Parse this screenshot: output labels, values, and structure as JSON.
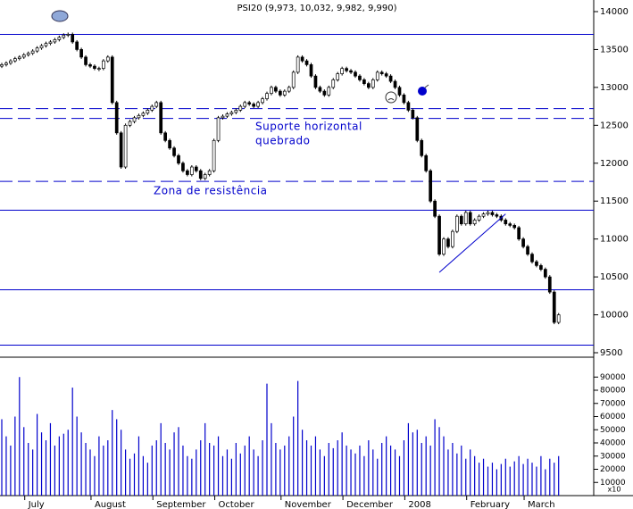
{
  "chart_data": {
    "type": "candlestick",
    "title": "PSI20 (9,973, 10,032, 9,982, 9,990)",
    "categories": [
      null,
      null,
      null,
      null,
      null,
      null,
      "July",
      null,
      null,
      null,
      null,
      null,
      null,
      null,
      null,
      null,
      null,
      null,
      null,
      null,
      null,
      "August",
      null,
      null,
      null,
      null,
      null,
      null,
      null,
      null,
      null,
      null,
      null,
      null,
      null,
      "September",
      null,
      null,
      null,
      null,
      null,
      null,
      null,
      null,
      null,
      null,
      null,
      null,
      null,
      "October",
      null,
      null,
      null,
      null,
      null,
      null,
      null,
      null,
      null,
      null,
      null,
      null,
      null,
      null,
      "November",
      null,
      null,
      null,
      null,
      null,
      null,
      null,
      null,
      null,
      null,
      null,
      null,
      null,
      "December",
      null,
      null,
      null,
      null,
      null,
      null,
      null,
      null,
      null,
      null,
      null,
      null,
      null,
      "2008",
      null,
      null,
      null,
      null,
      null,
      null,
      null,
      null,
      null,
      null,
      null,
      null,
      null,
      "February",
      null,
      null,
      null,
      null,
      null,
      null,
      null,
      null,
      null,
      null,
      null,
      null,
      "March",
      null,
      null,
      null,
      null,
      null,
      null,
      null
    ],
    "open": [
      13280,
      13300,
      13320,
      13350,
      13380,
      13400,
      13430,
      13450,
      13480,
      13520,
      13550,
      13580,
      13600,
      13630,
      13660,
      13690,
      13700,
      13600,
      13500,
      13400,
      13300,
      13280,
      13250,
      13250,
      13350,
      13400,
      12800,
      12400,
      11950,
      12500,
      12550,
      12600,
      12630,
      12660,
      12700,
      12750,
      12800,
      12400,
      12300,
      12200,
      12100,
      12000,
      11900,
      11850,
      11950,
      11900,
      11800,
      11850,
      11900,
      12300,
      12600,
      12620,
      12650,
      12670,
      12700,
      12750,
      12800,
      12780,
      12750,
      12800,
      12850,
      12920,
      13000,
      12950,
      12900,
      12950,
      13000,
      13200,
      13400,
      13350,
      13300,
      13150,
      13000,
      12950,
      12900,
      13000,
      13100,
      13180,
      13250,
      13220,
      13200,
      13150,
      13100,
      13050,
      13000,
      13100,
      13200,
      13180,
      13150,
      13080,
      13000,
      12900,
      12800,
      12700,
      12600,
      12300,
      12100,
      11900,
      11500,
      11300,
      10800,
      11000,
      10900,
      11100,
      11300,
      11200,
      11350,
      11200,
      11250,
      11300,
      11330,
      11350,
      11320,
      11300,
      11250,
      11200,
      11180,
      11150,
      11000,
      10900,
      10800,
      10700,
      10650,
      10600,
      10500,
      10300,
      9900
    ],
    "close": [
      13300,
      13320,
      13350,
      13380,
      13400,
      13430,
      13450,
      13480,
      13520,
      13550,
      13580,
      13600,
      13630,
      13660,
      13690,
      13700,
      13600,
      13500,
      13400,
      13300,
      13280,
      13250,
      13250,
      13350,
      13400,
      12800,
      12400,
      11950,
      12500,
      12550,
      12600,
      12630,
      12660,
      12700,
      12750,
      12800,
      12400,
      12300,
      12200,
      12100,
      12000,
      11900,
      11850,
      11950,
      11900,
      11800,
      11850,
      11900,
      12300,
      12600,
      12620,
      12650,
      12670,
      12700,
      12750,
      12800,
      12780,
      12750,
      12800,
      12850,
      12920,
      13000,
      12950,
      12900,
      12950,
      13000,
      13200,
      13400,
      13350,
      13300,
      13150,
      13000,
      12950,
      12900,
      13000,
      13100,
      13180,
      13250,
      13220,
      13200,
      13150,
      13100,
      13050,
      13000,
      13100,
      13200,
      13180,
      13150,
      13080,
      13000,
      12900,
      12800,
      12700,
      12600,
      12300,
      12100,
      11900,
      11500,
      11300,
      10800,
      11000,
      10900,
      11100,
      11300,
      11200,
      11350,
      11200,
      11250,
      11300,
      11330,
      11350,
      11320,
      11300,
      11250,
      11200,
      11180,
      11150,
      11000,
      10900,
      10800,
      10700,
      10650,
      10600,
      10500,
      10300,
      9900,
      10000
    ],
    "volume": [
      58000,
      45000,
      38000,
      60000,
      90000,
      52000,
      40000,
      35000,
      62000,
      48000,
      42000,
      55000,
      38000,
      45000,
      47000,
      50000,
      82000,
      60000,
      48000,
      40000,
      35000,
      30000,
      45000,
      38000,
      42000,
      65000,
      58000,
      50000,
      35000,
      28000,
      32000,
      45000,
      30000,
      25000,
      38000,
      42000,
      55000,
      40000,
      35000,
      48000,
      52000,
      38000,
      30000,
      28000,
      35000,
      42000,
      55000,
      40000,
      38000,
      45000,
      30000,
      35000,
      28000,
      40000,
      32000,
      38000,
      45000,
      35000,
      30000,
      42000,
      85000,
      55000,
      40000,
      35000,
      38000,
      45000,
      60000,
      87000,
      50000,
      42000,
      38000,
      45000,
      35000,
      30000,
      40000,
      36000,
      42000,
      48000,
      38000,
      35000,
      32000,
      38000,
      30000,
      42000,
      35000,
      28000,
      40000,
      45000,
      38000,
      35000,
      30000,
      42000,
      55000,
      48000,
      50000,
      40000,
      45000,
      38000,
      58000,
      52000,
      45000,
      35000,
      40000,
      32000,
      38000,
      28000,
      35000,
      30000,
      25000,
      28000,
      22000,
      25000,
      20000,
      24000,
      28000,
      22000,
      26000,
      30000,
      24000,
      28000,
      25000,
      22000,
      30000,
      20000,
      28000,
      25000,
      30000
    ],
    "ylim": [
      9441,
      14153
    ],
    "yticks": [
      9500,
      10000,
      10500,
      11000,
      11500,
      12000,
      12500,
      13000,
      13500,
      14000
    ],
    "vlim": [
      0,
      101700
    ],
    "vticks": [
      10000,
      20000,
      30000,
      40000,
      50000,
      60000,
      70000,
      80000,
      90000
    ],
    "volume_unit": "x10",
    "hlines": [
      {
        "value": 13700,
        "dash": false
      },
      {
        "value": 11380,
        "dash": false
      },
      {
        "value": 10330,
        "dash": false
      },
      {
        "value": 9600,
        "dash": false
      },
      {
        "value": 12720,
        "dash": true
      },
      {
        "value": 12590,
        "dash": true
      },
      {
        "value": 11760,
        "dash": true
      }
    ],
    "trendline": {
      "x": [
        99,
        114
      ],
      "y": [
        10560,
        11330
      ]
    },
    "annotations": [
      "Suporte horizontal",
      "quebrado",
      "Zona de resistência"
    ],
    "line_color": "#0000cc",
    "volume_color": "#0000cc"
  }
}
